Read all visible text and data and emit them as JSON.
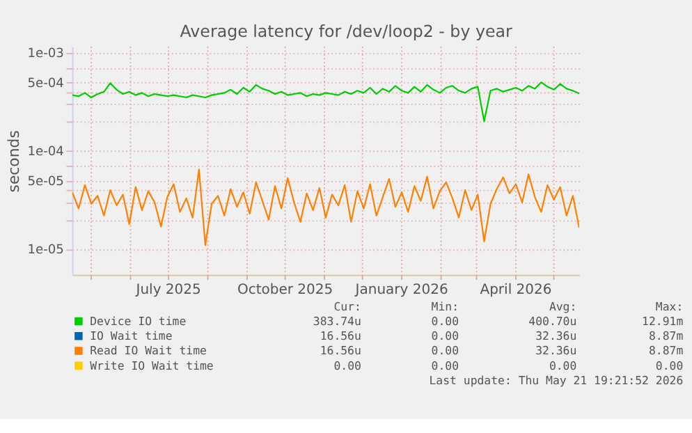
{
  "chart_data": {
    "type": "line",
    "title": "Average latency for /dev/loop2 - by year",
    "ylabel": "seconds",
    "x": [
      "2025-04-16",
      "2025-04-21",
      "2025-04-26",
      "2025-05-01",
      "2025-05-06",
      "2025-05-11",
      "2025-05-16",
      "2025-05-21",
      "2025-05-26",
      "2025-05-31",
      "2025-06-05",
      "2025-06-10",
      "2025-06-15",
      "2025-06-20",
      "2025-06-25",
      "2025-06-30",
      "2025-07-05",
      "2025-07-10",
      "2025-07-15",
      "2025-07-20",
      "2025-07-25",
      "2025-07-30",
      "2025-08-04",
      "2025-08-09",
      "2025-08-14",
      "2025-08-19",
      "2025-08-24",
      "2025-08-29",
      "2025-09-03",
      "2025-09-08",
      "2025-09-13",
      "2025-09-18",
      "2025-09-23",
      "2025-09-28",
      "2025-10-03",
      "2025-10-08",
      "2025-10-13",
      "2025-10-18",
      "2025-10-23",
      "2025-10-28",
      "2025-11-02",
      "2025-11-07",
      "2025-11-12",
      "2025-11-17",
      "2025-11-22",
      "2025-11-27",
      "2025-12-02",
      "2025-12-07",
      "2025-12-12",
      "2025-12-17",
      "2025-12-22",
      "2025-12-27",
      "2026-01-01",
      "2026-01-06",
      "2026-01-11",
      "2026-01-16",
      "2026-01-21",
      "2026-01-26",
      "2026-01-31",
      "2026-02-05",
      "2026-02-10",
      "2026-02-15",
      "2026-02-20",
      "2026-02-25",
      "2026-03-02",
      "2026-03-07",
      "2026-03-12",
      "2026-03-17",
      "2026-03-22",
      "2026-03-27",
      "2026-04-01",
      "2026-04-06",
      "2026-04-11",
      "2026-04-16",
      "2026-04-21",
      "2026-04-26",
      "2026-05-01",
      "2026-05-06",
      "2026-05-11",
      "2026-05-16",
      "2026-05-21"
    ],
    "series": [
      {
        "name": "Device IO time",
        "color": "#00cc00",
        "values": [
          0.00037,
          0.00036,
          0.00039,
          0.00035,
          0.00038,
          0.0004,
          0.00049,
          0.00042,
          0.00038,
          0.0004,
          0.00037,
          0.00039,
          0.00036,
          0.00038,
          0.00037,
          0.00036,
          0.00037,
          0.00036,
          0.00035,
          0.00037,
          0.00036,
          0.00035,
          0.00037,
          0.00038,
          0.00039,
          0.00042,
          0.00038,
          0.00044,
          0.0004,
          0.00047,
          0.00043,
          0.00041,
          0.00038,
          0.0004,
          0.00037,
          0.00038,
          0.00039,
          0.00036,
          0.00038,
          0.00037,
          0.00039,
          0.00038,
          0.00037,
          0.0004,
          0.00038,
          0.00041,
          0.00039,
          0.00044,
          0.00038,
          0.00043,
          0.0004,
          0.00046,
          0.00041,
          0.00039,
          0.00045,
          0.0004,
          0.00047,
          0.00042,
          0.00039,
          0.00044,
          0.00046,
          0.00041,
          0.00039,
          0.00043,
          0.00045,
          0.0002,
          0.00041,
          0.00043,
          0.0004,
          0.00042,
          0.00044,
          0.00041,
          0.00046,
          0.00043,
          0.0005,
          0.00045,
          0.00042,
          0.00048,
          0.00043,
          0.00041,
          0.000384
        ]
      },
      {
        "name": "IO Wait time",
        "color": "#0066b3",
        "values": [
          null,
          null,
          null,
          null,
          null,
          null,
          null,
          null,
          null,
          null,
          null,
          null,
          null,
          null,
          null,
          null,
          null,
          null,
          null,
          null,
          null,
          null,
          null,
          null,
          null,
          null,
          null,
          null,
          null,
          null,
          null,
          null,
          null,
          null,
          null,
          null,
          null,
          null,
          null,
          null,
          null,
          null,
          null,
          null,
          null,
          null,
          null,
          null,
          null,
          null,
          null,
          null,
          null,
          null,
          null,
          null,
          null,
          null,
          null,
          null,
          null,
          null,
          null,
          null,
          null,
          null,
          null,
          null,
          null,
          null,
          null,
          null,
          null,
          null,
          null,
          null,
          null,
          null,
          null,
          null,
          null
        ]
      },
      {
        "name": "Read IO Wait time",
        "color": "#ff8000",
        "values": [
          3.8e-05,
          2.6e-05,
          4.5e-05,
          2.9e-05,
          3.5e-05,
          2.2e-05,
          4e-05,
          2.8e-05,
          3.6e-05,
          1.8e-05,
          4.3e-05,
          2.5e-05,
          3.9e-05,
          3e-05,
          1.7e-05,
          3.4e-05,
          4.6e-05,
          2.4e-05,
          3.3e-05,
          2.1e-05,
          6.5e-05,
          1.1e-05,
          2.9e-05,
          3.5e-05,
          2.2e-05,
          4.1e-05,
          2.7e-05,
          3.8e-05,
          2.3e-05,
          4.8e-05,
          3.1e-05,
          2e-05,
          4.4e-05,
          2.6e-05,
          5.3e-05,
          3e-05,
          1.9e-05,
          3.7e-05,
          2.5e-05,
          4.2e-05,
          2.1e-05,
          3.6e-05,
          2.8e-05,
          4.5e-05,
          1.9e-05,
          3.9e-05,
          2.6e-05,
          4.6e-05,
          2.2e-05,
          3.4e-05,
          5.2e-05,
          2.7e-05,
          3.8e-05,
          2.4e-05,
          4.4e-05,
          3.1e-05,
          5.5e-05,
          2.6e-05,
          3.9e-05,
          4.8e-05,
          3.3e-05,
          2.1e-05,
          4e-05,
          2.5e-05,
          3.6e-05,
          1.2e-05,
          2.9e-05,
          4.1e-05,
          5.4e-05,
          3.7e-05,
          4.6e-05,
          3e-05,
          5.8e-05,
          3.4e-05,
          2.4e-05,
          4.5e-05,
          3.2e-05,
          4.3e-05,
          2.2e-05,
          3.5e-05,
          1.656e-05
        ]
      },
      {
        "name": "Write IO Wait time",
        "color": "#ffcc00",
        "values": [
          null,
          null,
          null,
          null,
          null,
          null,
          null,
          null,
          null,
          null,
          null,
          null,
          null,
          null,
          null,
          null,
          null,
          null,
          null,
          null,
          null,
          null,
          null,
          null,
          null,
          null,
          null,
          null,
          null,
          null,
          null,
          null,
          null,
          null,
          null,
          null,
          null,
          null,
          null,
          null,
          null,
          null,
          null,
          null,
          null,
          null,
          null,
          null,
          null,
          null,
          null,
          null,
          null,
          null,
          null,
          null,
          null,
          null,
          null,
          null,
          null,
          null,
          null,
          null,
          null,
          null,
          null,
          null,
          null,
          null,
          null,
          null,
          null,
          null,
          null,
          null,
          null,
          null,
          null,
          null,
          null
        ]
      }
    ],
    "xlim": [
      "2025-04-16",
      "2026-05-21"
    ],
    "xticks": [
      {
        "value": "2025-05-01",
        "label": null
      },
      {
        "value": "2025-06-01",
        "label": null
      },
      {
        "value": "2025-07-01",
        "label": "July 2025"
      },
      {
        "value": "2025-08-01",
        "label": null
      },
      {
        "value": "2025-09-01",
        "label": null
      },
      {
        "value": "2025-10-01",
        "label": "October 2025"
      },
      {
        "value": "2025-11-01",
        "label": null
      },
      {
        "value": "2025-12-01",
        "label": null
      },
      {
        "value": "2026-01-01",
        "label": "January 2026"
      },
      {
        "value": "2026-02-01",
        "label": null
      },
      {
        "value": "2026-03-01",
        "label": null
      },
      {
        "value": "2026-04-01",
        "label": "April 2026"
      },
      {
        "value": "2026-05-01",
        "label": null
      }
    ],
    "log": true,
    "ylim": [
      5.5e-06,
      0.00115
    ],
    "yticks": [
      {
        "value": 1e-05,
        "label": "1e-05"
      },
      {
        "value": 2e-05,
        "label": null
      },
      {
        "value": 3e-05,
        "label": null
      },
      {
        "value": 4e-05,
        "label": null
      },
      {
        "value": 5e-05,
        "label": "5e-05"
      },
      {
        "value": 7e-05,
        "label": null
      },
      {
        "value": 0.0001,
        "label": "1e-04"
      },
      {
        "value": 0.0002,
        "label": null
      },
      {
        "value": 0.0003,
        "label": null
      },
      {
        "value": 0.0004,
        "label": null
      },
      {
        "value": 0.0005,
        "label": "5e-04"
      },
      {
        "value": 0.0007,
        "label": null
      },
      {
        "value": 0.001,
        "label": "1e-03"
      }
    ],
    "grid": true,
    "legend": "bottom",
    "annotations": [
      "Cur:",
      "Min:",
      "Avg:",
      "Max:",
      "383.74u",
      "0.00",
      "400.70u",
      "12.91m",
      "16.56u",
      "0.00",
      "32.36u",
      "8.87m",
      "16.56u",
      "0.00",
      "32.36u",
      "8.87m",
      "0.00",
      "0.00",
      "0.00",
      "0.00",
      "Last update: Thu May 21 19:21:52 2026"
    ]
  }
}
